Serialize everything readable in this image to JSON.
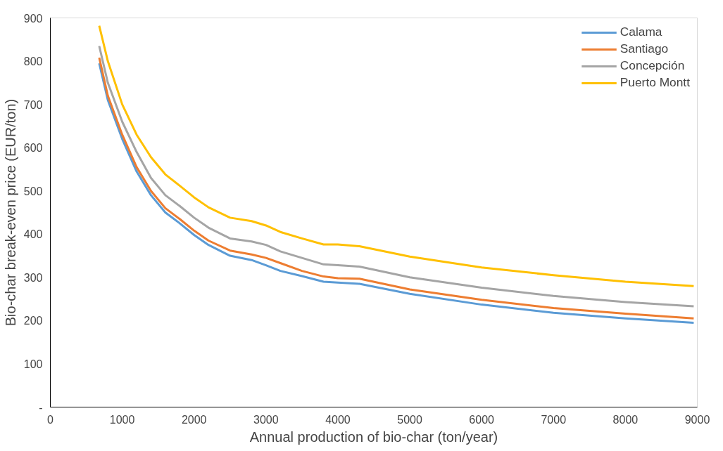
{
  "chart_data": {
    "type": "line",
    "xlabel": "Annual production of bio-char (ton/year)",
    "ylabel": "Bio-char break-even price (EUR/ton)",
    "x": [
      680,
      800,
      1000,
      1200,
      1400,
      1600,
      1800,
      2000,
      2200,
      2500,
      2800,
      3000,
      3200,
      3500,
      3800,
      4000,
      4300,
      5000,
      6000,
      7000,
      8000,
      8950
    ],
    "series": [
      {
        "name": "Calama",
        "color": "#5b9bd5",
        "values": [
          795,
          710,
          620,
          545,
          490,
          450,
          425,
          398,
          375,
          350,
          340,
          328,
          315,
          303,
          290,
          288,
          285,
          262,
          237,
          218,
          205,
          195
        ]
      },
      {
        "name": "Santiago",
        "color": "#ed7d31",
        "values": [
          808,
          720,
          630,
          555,
          500,
          460,
          435,
          408,
          385,
          362,
          353,
          345,
          333,
          315,
          302,
          298,
          297,
          272,
          248,
          229,
          216,
          205
        ]
      },
      {
        "name": "Concepción",
        "color": "#a5a5a5",
        "values": [
          835,
          750,
          660,
          590,
          530,
          490,
          465,
          438,
          415,
          390,
          383,
          375,
          360,
          345,
          330,
          328,
          325,
          300,
          276,
          257,
          243,
          233
        ]
      },
      {
        "name": "Puerto Montt",
        "color": "#ffc000",
        "values": [
          882,
          800,
          700,
          630,
          578,
          538,
          512,
          485,
          462,
          438,
          430,
          420,
          405,
          390,
          376,
          376,
          372,
          348,
          323,
          305,
          290,
          280
        ]
      }
    ],
    "xlim": [
      0,
      9000
    ],
    "xticks": [
      0,
      1000,
      2000,
      3000,
      4000,
      5000,
      6000,
      7000,
      8000,
      9000
    ],
    "ylim": [
      0,
      900
    ],
    "yticks": [
      {
        "value": 0,
        "label": "-"
      },
      100,
      200,
      300,
      400,
      500,
      600,
      700,
      800,
      900
    ],
    "grid": false,
    "legend": "top right",
    "marker": "none",
    "line_style": "solid"
  }
}
